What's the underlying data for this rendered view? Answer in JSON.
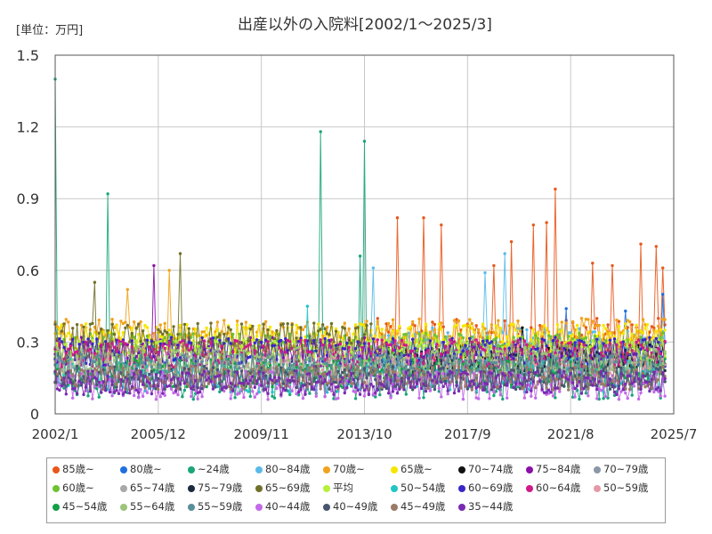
{
  "chart_data": {
    "type": "line",
    "title": "出産以外の入院料[2002/1～2025/3]",
    "unit_label": "[単位：万円]",
    "xlabel": "",
    "ylabel": "",
    "x_range": [
      "2002-01",
      "2025-07"
    ],
    "x_ticks": [
      "2002/1",
      "2005/12",
      "2009/11",
      "2013/10",
      "2017/9",
      "2021/8",
      "2025/7"
    ],
    "ylim": [
      0,
      1.5
    ],
    "y_ticks": [
      "0",
      "0.3",
      "0.6",
      "0.9",
      "1.2",
      "1.5"
    ],
    "grid": true,
    "legend_position": "bottom",
    "series": [
      {
        "name": "85歳~",
        "color": "#e8571a",
        "base": 0.3,
        "amp": 0.1,
        "start": "2014-01",
        "peaks": [
          [
            "2015-01",
            0.82
          ],
          [
            "2016-01",
            0.82
          ],
          [
            "2016-09",
            0.79
          ],
          [
            "2018-09",
            0.62
          ],
          [
            "2019-05",
            0.72
          ],
          [
            "2020-03",
            0.79
          ],
          [
            "2020-09",
            0.8
          ],
          [
            "2021-01",
            0.94
          ],
          [
            "2022-06",
            0.63
          ],
          [
            "2023-03",
            0.62
          ],
          [
            "2024-04",
            0.71
          ],
          [
            "2024-11",
            0.7
          ],
          [
            "2025-02",
            0.61
          ]
        ]
      },
      {
        "name": "80歳~",
        "color": "#1f6fe0",
        "base": 0.24,
        "amp": 0.08,
        "start": "2014-01",
        "peaks": [
          [
            "2021-06",
            0.44
          ],
          [
            "2023-09",
            0.43
          ],
          [
            "2025-02",
            0.5
          ]
        ]
      },
      {
        "name": "~24歳",
        "color": "#1aa57a",
        "base": 0.18,
        "amp": 0.12,
        "peaks": [
          [
            "2002-01",
            1.4
          ],
          [
            "2004-01",
            0.92
          ],
          [
            "2012-02",
            1.18
          ],
          [
            "2013-10",
            1.14
          ],
          [
            "2013-08",
            0.66
          ]
        ]
      },
      {
        "name": "80~84歳",
        "color": "#5bbbe8",
        "base": 0.26,
        "amp": 0.1,
        "start": "2014-01",
        "peaks": [
          [
            "2014-02",
            0.61
          ],
          [
            "2018-05",
            0.59
          ],
          [
            "2019-02",
            0.67
          ]
        ]
      },
      {
        "name": "70歳~",
        "color": "#f0a21c",
        "base": 0.33,
        "amp": 0.07,
        "peaks": [
          [
            "2004-10",
            0.52
          ],
          [
            "2006-05",
            0.6
          ]
        ]
      },
      {
        "name": "65歳~",
        "color": "#f5e600",
        "base": 0.32,
        "amp": 0.06,
        "peaks": []
      },
      {
        "name": "70~74歳",
        "color": "#111111",
        "base": 0.24,
        "amp": 0.05,
        "start": "2014-01",
        "peaks": [
          [
            "2019-10",
            0.36
          ]
        ]
      },
      {
        "name": "75~84歳",
        "color": "#8a10a8",
        "base": 0.26,
        "amp": 0.06,
        "end": "2014-01",
        "peaks": [
          [
            "2005-10",
            0.62
          ]
        ]
      },
      {
        "name": "70~79歳",
        "color": "#8a98a8",
        "base": 0.24,
        "amp": 0.06,
        "start": "2014-01",
        "peaks": []
      },
      {
        "name": "60歳~",
        "color": "#6fc233",
        "base": 0.28,
        "amp": 0.06,
        "peaks": []
      },
      {
        "name": "65~74歳",
        "color": "#a8a8a8",
        "base": 0.22,
        "amp": 0.06,
        "peaks": []
      },
      {
        "name": "75~79歳",
        "color": "#1c2a40",
        "base": 0.22,
        "amp": 0.05,
        "start": "2014-01",
        "peaks": []
      },
      {
        "name": "65~69歳",
        "color": "#70702a",
        "base": 0.3,
        "amp": 0.08,
        "end": "2014-01",
        "peaks": [
          [
            "2006-10",
            0.67
          ],
          [
            "2003-07",
            0.55
          ]
        ]
      },
      {
        "name": "平均",
        "color": "#b5f03a",
        "base": 0.27,
        "amp": 0.04,
        "peaks": []
      },
      {
        "name": "50~54歳",
        "color": "#22c5c5",
        "base": 0.16,
        "amp": 0.07,
        "peaks": [
          [
            "2011-08",
            0.45
          ]
        ]
      },
      {
        "name": "60~69歳",
        "color": "#3a26c8",
        "base": 0.26,
        "amp": 0.06,
        "peaks": []
      },
      {
        "name": "60~64歳",
        "color": "#d01a8a",
        "base": 0.25,
        "amp": 0.06,
        "peaks": []
      },
      {
        "name": "50~59歳",
        "color": "#e49aa6",
        "base": 0.18,
        "amp": 0.06,
        "peaks": []
      },
      {
        "name": "45~54歳",
        "color": "#14a04a",
        "base": 0.17,
        "amp": 0.06,
        "peaks": []
      },
      {
        "name": "55~64歳",
        "color": "#9cc47a",
        "base": 0.22,
        "amp": 0.06,
        "peaks": []
      },
      {
        "name": "55~59歳",
        "color": "#5a8f9a",
        "base": 0.19,
        "amp": 0.06,
        "peaks": []
      },
      {
        "name": "40~44歳",
        "color": "#c36ae8",
        "base": 0.12,
        "amp": 0.06,
        "peaks": []
      },
      {
        "name": "40~49歳",
        "color": "#4a5670",
        "base": 0.15,
        "amp": 0.05,
        "peaks": []
      },
      {
        "name": "45~49歳",
        "color": "#9a7a66",
        "base": 0.15,
        "amp": 0.05,
        "peaks": []
      },
      {
        "name": "35~44歳",
        "color": "#7a2ab0",
        "base": 0.13,
        "amp": 0.05,
        "peaks": []
      }
    ]
  }
}
